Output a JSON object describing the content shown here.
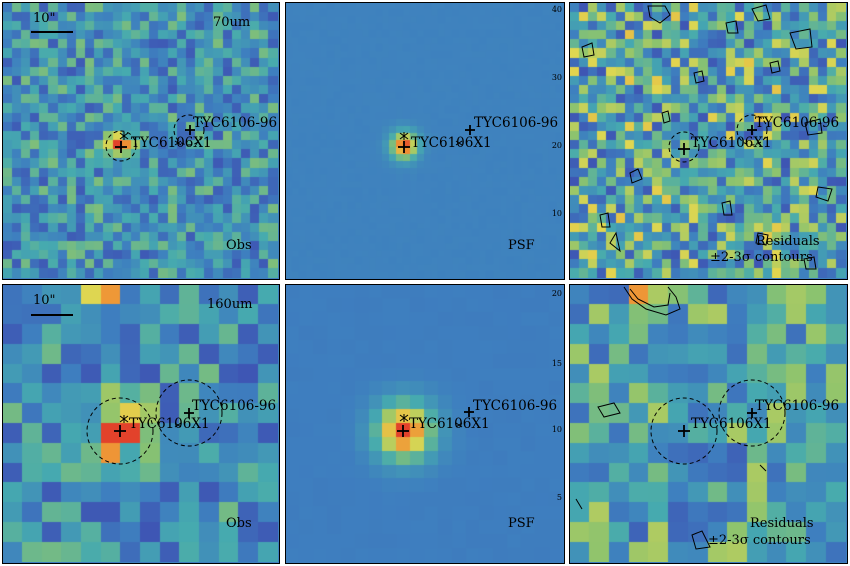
{
  "figure": {
    "scale_bar": "10\"",
    "wavelengths": [
      "70um",
      "160um"
    ],
    "panel_types": [
      "Obs",
      "PSF",
      "Residuals"
    ],
    "residual_note": "±2-3σ contours",
    "sources": {
      "primary": "TYC6106X1",
      "secondary": "TYC6106-96"
    },
    "axis_ticks": {
      "row_70um": [
        "40",
        "30",
        "20",
        "10"
      ],
      "row_160um": [
        "20",
        "15",
        "10",
        "5"
      ]
    },
    "colors": {
      "background": "#3e7fbf",
      "peak": "#e2422b",
      "frame_ticks": "#c0392b"
    }
  }
}
